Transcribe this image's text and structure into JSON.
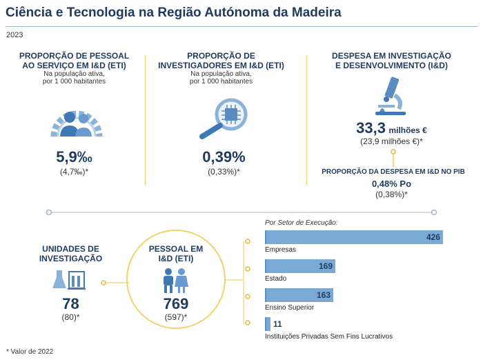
{
  "header": {
    "title": "Ciência e Tecnologia na Região Autónoma da Madeira",
    "year": "2023"
  },
  "cards": {
    "pessoal": {
      "title_line1": "PROPORÇÃO DE PESSOAL",
      "title_line2": "AO SERVIÇO EM I&D (ETI)",
      "sub_line1": "Na população ativa,",
      "sub_line2": "por 1 000 habitantes",
      "value": "5,9‰",
      "previous": "(4,7‰)*",
      "icon": "people-gear-icon"
    },
    "investigadores": {
      "title_line1": "PROPORÇÃO DE",
      "title_line2": "INVESTIGADORES EM I&D (ETI)",
      "sub_line1": "Na população ativa,",
      "sub_line2": "por 1 000 habitantes",
      "value": "0,39%",
      "previous": "(0,33%)*",
      "icon": "magnifier-chip-icon"
    },
    "despesa": {
      "title_line1": "DESPESA EM INVESTIGAÇÃO",
      "title_line2": "E DESENVOLVIMENTO (I&D)",
      "value": "33,3",
      "unit": "milhões €",
      "previous": "(23,9 milhões €)*",
      "pib_title": "PROPORÇÃO DA DESPESA EM I&D NO PIB",
      "pib_value": "0,48% Po",
      "pib_previous": "(0,38%)*",
      "icon": "microscope-icon"
    },
    "unidades": {
      "title_line1": "UNIDADES DE",
      "title_line2": "INVESTIGAÇÃO",
      "value": "78",
      "previous": "(80)*",
      "icon": "lab-flasks-icon"
    },
    "pessoal_eti": {
      "title_line1": "PESSOAL EM",
      "title_line2": "I&D (ETI)",
      "value": "769",
      "previous": "(597)*",
      "icon": "researchers-icon"
    }
  },
  "chart_data": {
    "type": "bar",
    "orientation": "horizontal",
    "title": "Por Setor de Execução:",
    "categories": [
      "Empresas",
      "Estado",
      "Ensino Superior",
      "Instituições Privadas Sem Fins Lucrativos"
    ],
    "values": [
      426,
      169,
      163,
      11
    ],
    "xlim": [
      0,
      426
    ]
  },
  "footnote": "* Valor de 2022",
  "colors": {
    "navy": "#1e3a5f",
    "bar": "#7ba9d6",
    "accent_line": "#f0d36b",
    "icon_blue": "#5b8cc0"
  }
}
